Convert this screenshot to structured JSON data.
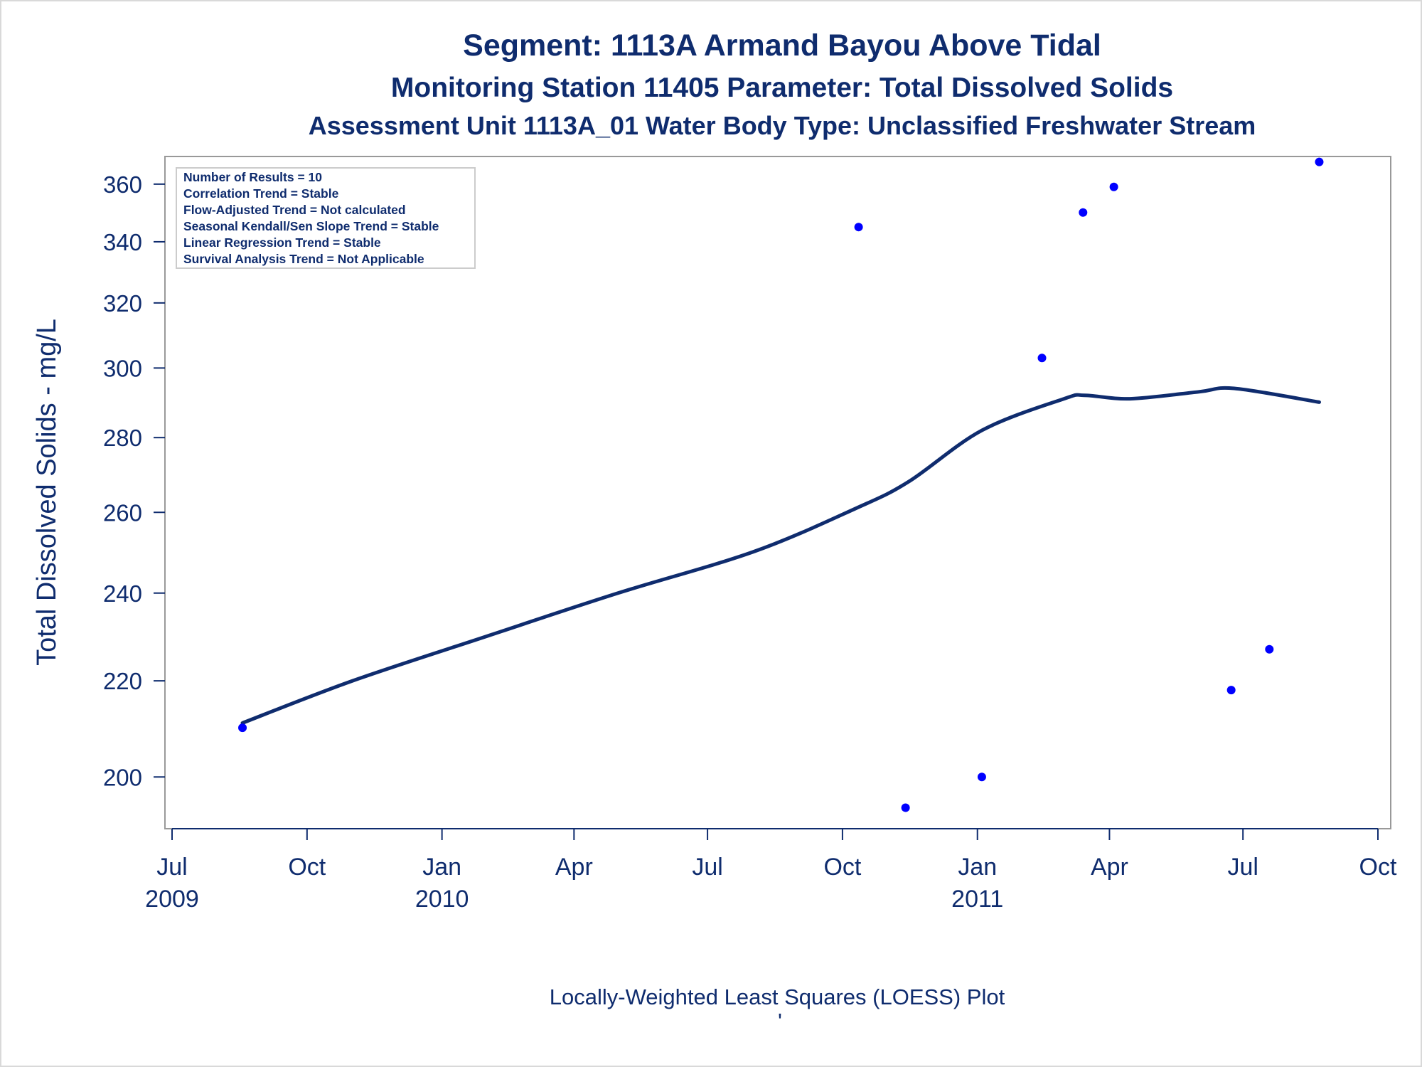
{
  "titles": {
    "line1": "Segment: 1113A  Armand Bayou Above Tidal",
    "line2": "Monitoring Station 11405 Parameter: Total Dissolved Solids",
    "line3": "Assessment Unit 1113A_01   Water Body Type: Unclassified Freshwater Stream"
  },
  "stats_box": [
    "Number of Results = 10",
    "Correlation Trend = Stable",
    "Flow-Adjusted Trend = Not calculated",
    "Seasonal Kendall/Sen Slope Trend = Stable",
    "Linear Regression Trend = Stable",
    "Survival Analysis Trend = Not Applicable"
  ],
  "footer": {
    "caption": "Locally-Weighted Least Squares (LOESS) Plot",
    "mark": "'"
  },
  "colors": {
    "text": "#0f2c6e",
    "points": "#0000ff",
    "loess_line": "#0f2c6e",
    "frame": "#999999"
  },
  "chart_data": {
    "type": "scatter",
    "ylabel": "Total Dissolved Solids - mg/L",
    "xlabel": "",
    "y_scale": "log",
    "ylim": [
      190,
      370
    ],
    "y_ticks": [
      200,
      220,
      240,
      260,
      280,
      300,
      320,
      340,
      360
    ],
    "xlim": [
      "2009-07-01",
      "2011-10-01"
    ],
    "x_ticks": [
      {
        "date": "2009-07-01",
        "label": "Jul",
        "year": "2009"
      },
      {
        "date": "2009-10-01",
        "label": "Oct",
        "year": ""
      },
      {
        "date": "2010-01-01",
        "label": "Jan",
        "year": "2010"
      },
      {
        "date": "2010-04-01",
        "label": "Apr",
        "year": ""
      },
      {
        "date": "2010-07-01",
        "label": "Jul",
        "year": ""
      },
      {
        "date": "2010-10-01",
        "label": "Oct",
        "year": ""
      },
      {
        "date": "2011-01-01",
        "label": "Jan",
        "year": "2011"
      },
      {
        "date": "2011-04-01",
        "label": "Apr",
        "year": ""
      },
      {
        "date": "2011-07-01",
        "label": "Jul",
        "year": ""
      },
      {
        "date": "2011-10-01",
        "label": "Oct",
        "year": ""
      }
    ],
    "points": [
      {
        "x": "2009-08-18",
        "y": 210
      },
      {
        "x": "2010-10-12",
        "y": 345
      },
      {
        "x": "2010-11-13",
        "y": 194
      },
      {
        "x": "2011-01-04",
        "y": 200
      },
      {
        "x": "2011-02-14",
        "y": 303
      },
      {
        "x": "2011-03-14",
        "y": 350
      },
      {
        "x": "2011-04-04",
        "y": 359
      },
      {
        "x": "2011-06-23",
        "y": 218
      },
      {
        "x": "2011-07-19",
        "y": 227
      },
      {
        "x": "2011-08-22",
        "y": 368
      }
    ],
    "loess": [
      {
        "x": "2009-08-18",
        "y": 211
      },
      {
        "x": "2009-11-01",
        "y": 220
      },
      {
        "x": "2010-02-01",
        "y": 230
      },
      {
        "x": "2010-05-01",
        "y": 240
      },
      {
        "x": "2010-08-01",
        "y": 250
      },
      {
        "x": "2010-10-10",
        "y": 261
      },
      {
        "x": "2010-11-15",
        "y": 268
      },
      {
        "x": "2011-01-04",
        "y": 282
      },
      {
        "x": "2011-03-01",
        "y": 291
      },
      {
        "x": "2011-03-15",
        "y": 292
      },
      {
        "x": "2011-04-15",
        "y": 291
      },
      {
        "x": "2011-06-01",
        "y": 293
      },
      {
        "x": "2011-06-25",
        "y": 294
      },
      {
        "x": "2011-08-22",
        "y": 290
      }
    ]
  }
}
